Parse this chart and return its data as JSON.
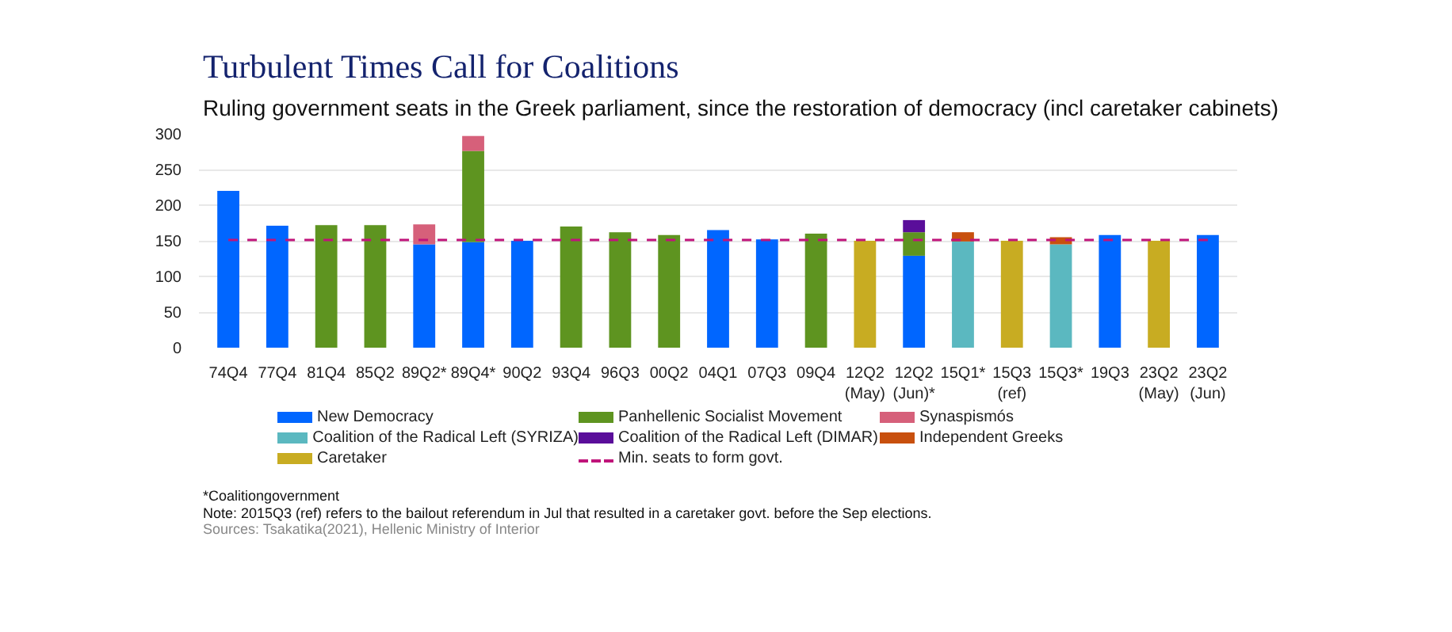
{
  "chart_data": {
    "type": "bar",
    "stacked": true,
    "title": "Turbulent Times Call for Coalitions",
    "subtitle": "Ruling government seats in the Greek parliament, since the restoration of democracy (incl caretaker cabinets)",
    "categories": [
      "74Q4",
      "77Q4",
      "81Q4",
      "85Q2",
      "89Q2*",
      "89Q4*",
      "90Q2",
      "93Q4",
      "96Q3",
      "00Q2",
      "04Q1",
      "07Q3",
      "09Q4",
      "12Q2\n(May)",
      "12Q2\n(Jun)*",
      "15Q1*",
      "15Q3\n(ref)",
      "15Q3*",
      "19Q3",
      "23Q2\n(May)",
      "23Q2\n(Jun)"
    ],
    "series": [
      {
        "name": "New Democracy",
        "color": "#0066ff",
        "values": [
          220,
          171,
          null,
          null,
          145,
          148,
          150,
          null,
          null,
          null,
          165,
          152,
          null,
          null,
          129,
          null,
          null,
          null,
          158,
          null,
          158
        ]
      },
      {
        "name": "Panhellenic Socialist Movement",
        "color": "#5e9420",
        "values": [
          null,
          null,
          172,
          172,
          null,
          128,
          null,
          170,
          162,
          158,
          null,
          null,
          160,
          null,
          33,
          null,
          null,
          null,
          null,
          null,
          null
        ]
      },
      {
        "name": "Synaspismós",
        "color": "#d6607a",
        "values": [
          null,
          null,
          null,
          null,
          28,
          21,
          null,
          null,
          null,
          null,
          null,
          null,
          null,
          null,
          null,
          null,
          null,
          null,
          null,
          null,
          null
        ]
      },
      {
        "name": "Coalition of the Radical Left (SYRIZA)",
        "color": "#5bb8c0",
        "values": [
          null,
          null,
          null,
          null,
          null,
          null,
          null,
          null,
          null,
          null,
          null,
          null,
          null,
          null,
          null,
          149,
          null,
          145,
          null,
          null,
          null
        ]
      },
      {
        "name": "Coalition of the Radical Left (DIMAR)",
        "color": "#5a0e9a",
        "values": [
          null,
          null,
          null,
          null,
          null,
          null,
          null,
          null,
          null,
          null,
          null,
          null,
          null,
          null,
          17,
          null,
          null,
          null,
          null,
          null,
          null
        ]
      },
      {
        "name": "Independent Greeks",
        "color": "#c8500e",
        "values": [
          null,
          null,
          null,
          null,
          null,
          null,
          null,
          null,
          null,
          null,
          null,
          null,
          null,
          null,
          null,
          13,
          null,
          10,
          null,
          null,
          null
        ]
      },
      {
        "name": "Caretaker",
        "color": "#c8ac22",
        "values": [
          null,
          null,
          null,
          null,
          null,
          null,
          null,
          null,
          null,
          null,
          null,
          null,
          null,
          150,
          null,
          null,
          150,
          null,
          null,
          150,
          null
        ]
      }
    ],
    "ref_lines": [
      {
        "axis": "y",
        "value": 151,
        "label": "Min. seats to form govt.",
        "color": "#c0147a",
        "line_style": "dashed"
      }
    ],
    "ylim": [
      0,
      300
    ],
    "yticks": [
      0,
      50,
      100,
      150,
      200,
      250,
      300
    ],
    "grid": "y",
    "legend": "bottom",
    "annotations": [
      "*Coalitiongovernment",
      "Note: 2015Q3 (ref) refers to the bailout referendum in Jul that resulted in a caretaker govt. before the Sep elections.",
      "Sources: Tsakatika(2021), Hellenic Ministry of Interior"
    ]
  }
}
